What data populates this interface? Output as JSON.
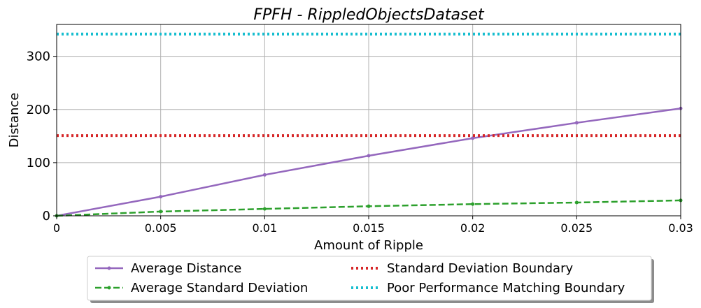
{
  "chart_data": {
    "type": "line",
    "title": "FPFH - RippledObjectsDataset",
    "xlabel": "Amount of Ripple",
    "ylabel": "Distance",
    "xlim": [
      0,
      0.03
    ],
    "ylim": [
      0,
      360
    ],
    "xticks": [
      0,
      0.005,
      0.01,
      0.015,
      0.02,
      0.025,
      0.03
    ],
    "xtick_labels": [
      "0",
      "0.005",
      "0.01",
      "0.015",
      "0.02",
      "0.025",
      "0.03"
    ],
    "yticks": [
      0,
      100,
      200,
      300
    ],
    "ytick_labels": [
      "0",
      "100",
      "200",
      "300"
    ],
    "grid": true,
    "legend_position": "below plot, two columns, shadowed box",
    "series": [
      {
        "name": "Average Distance",
        "style": "solid",
        "marker": "dot",
        "color": "#9467bd",
        "x": [
          0,
          0.005,
          0.01,
          0.015,
          0.02,
          0.025,
          0.03
        ],
        "y": [
          0,
          36,
          77,
          113,
          146,
          175,
          202
        ]
      },
      {
        "name": "Average Standard Deviation",
        "style": "dashed",
        "marker": "dot",
        "color": "#2ca02c",
        "x": [
          0,
          0.005,
          0.01,
          0.015,
          0.02,
          0.025,
          0.03
        ],
        "y": [
          0,
          8,
          13,
          18,
          22,
          25,
          29
        ]
      },
      {
        "name": "Standard Deviation Boundary",
        "style": "dotted",
        "color": "#d62728",
        "x": [
          0,
          0.03
        ],
        "y": [
          151,
          151
        ]
      },
      {
        "name": "Poor Performance Matching Boundary",
        "style": "dotted",
        "color": "#17becf",
        "x": [
          0,
          0.03
        ],
        "y": [
          342,
          342
        ]
      }
    ]
  }
}
